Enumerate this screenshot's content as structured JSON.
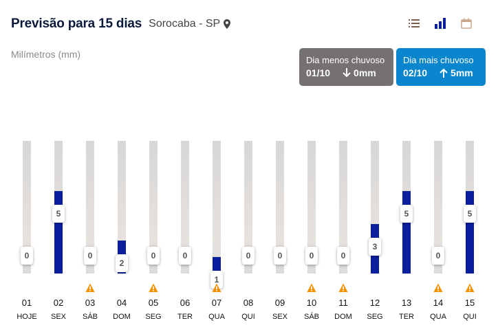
{
  "header": {
    "title": "Previsão para 15 dias",
    "city": "Sorocaba - SP"
  },
  "unit_label": "Milímetros (mm)",
  "cards": {
    "min": {
      "title": "Dia menos chuvoso",
      "date": "01/10",
      "value": "0mm"
    },
    "max": {
      "title": "Dia mais chuvoso",
      "date": "02/10",
      "value": "5mm"
    }
  },
  "colors": {
    "bar": "#0a1f9e",
    "card_min": "#757170",
    "card_max": "#0a86cf",
    "warning": "#f39200"
  },
  "chart_data": {
    "type": "bar",
    "title": "Previsão para 15 dias",
    "ylabel": "Milímetros (mm)",
    "ylim": [
      0,
      10
    ],
    "categories": [
      "01",
      "02",
      "03",
      "04",
      "05",
      "06",
      "07",
      "08",
      "09",
      "10",
      "11",
      "12",
      "13",
      "14",
      "15"
    ],
    "day_names": [
      "HOJE",
      "SEX",
      "SÁB",
      "DOM",
      "SEG",
      "TER",
      "QUA",
      "QUI",
      "SEX",
      "SÁB",
      "DOM",
      "SEG",
      "TER",
      "QUA",
      "QUI"
    ],
    "values": [
      0,
      5,
      0,
      2,
      0,
      0,
      1,
      0,
      0,
      0,
      0,
      3,
      5,
      0,
      5
    ],
    "warnings": [
      false,
      false,
      true,
      false,
      true,
      false,
      true,
      false,
      false,
      true,
      true,
      false,
      false,
      true,
      true
    ]
  }
}
